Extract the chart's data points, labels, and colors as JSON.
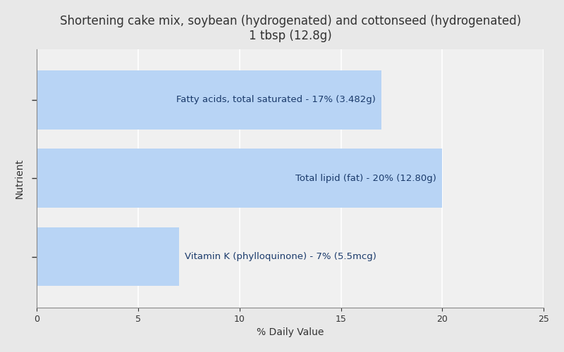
{
  "title_line1": "Shortening cake mix, soybean (hydrogenated) and cottonseed (hydrogenated)",
  "title_line2": "1 tbsp (12.8g)",
  "bars": [
    {
      "label": "Fatty acids, total saturated - 17% (3.482g)",
      "value": 17
    },
    {
      "label": "Total lipid (fat) - 20% (12.80g)",
      "value": 20
    },
    {
      "label": "Vitamin K (phylloquinone) - 7% (5.5mcg)",
      "value": 7
    }
  ],
  "bar_color": "#b8d4f5",
  "bar_edge_color": "#b8d4f5",
  "label_color_inside": "#1a3a6b",
  "label_color_outside": "#1a3a6b",
  "axis_text_color": "#333333",
  "xlabel": "% Daily Value",
  "ylabel": "Nutrient",
  "xlim": [
    0,
    25
  ],
  "xticks": [
    0,
    5,
    10,
    15,
    20,
    25
  ],
  "background_color": "#e8e8e8",
  "plot_background_color": "#f0f0f0",
  "title_color": "#333333",
  "title_fontsize": 12,
  "label_fontsize": 9.5,
  "axis_label_fontsize": 10,
  "bar_height": 0.75,
  "inside_label_threshold": 12
}
